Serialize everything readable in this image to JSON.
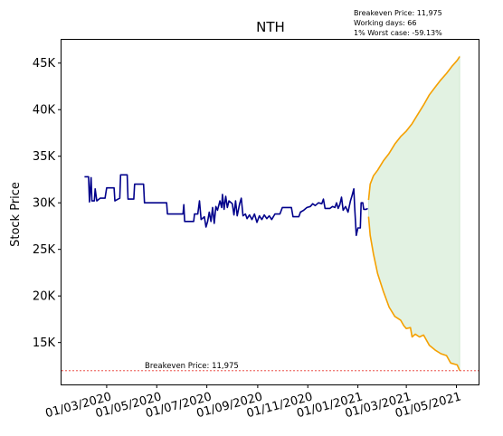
{
  "chart_data": {
    "type": "line",
    "title": "NTH",
    "xlabel": "",
    "ylabel": "Stock Price",
    "x_range": [
      "2020-01-06",
      "2021-05-28"
    ],
    "ylim": [
      10500,
      47500
    ],
    "x_ticks": [
      "01/03/2020",
      "01/05/2020",
      "01/07/2020",
      "01/09/2020",
      "01/11/2020",
      "01/01/2021",
      "01/03/2021",
      "01/05/2021"
    ],
    "x_tick_dates": [
      "2020-03-01",
      "2020-05-01",
      "2020-07-01",
      "2020-09-01",
      "2020-11-01",
      "2021-01-01",
      "2021-03-01",
      "2021-05-01"
    ],
    "y_ticks": [
      "15K",
      "20K",
      "25K",
      "30K",
      "35K",
      "40K",
      "45K"
    ],
    "y_tick_values": [
      15000,
      20000,
      25000,
      30000,
      35000,
      40000,
      45000
    ],
    "info_text": [
      "Breakeven Price: 11,975",
      "Working days: 66",
      "1% Worst case: -59.13%"
    ],
    "breakeven": {
      "value": 11975,
      "label": "Breakeven Price: 11,975",
      "color": "#e8352c"
    },
    "series": [
      {
        "color": "#00008b",
        "points": [
          [
            "2020-02-03",
            32800
          ],
          [
            "2020-02-08",
            32800
          ],
          [
            "2020-02-09",
            30100
          ],
          [
            "2020-02-11",
            32700
          ],
          [
            "2020-02-12",
            30200
          ],
          [
            "2020-02-15",
            30200
          ],
          [
            "2020-02-16",
            31500
          ],
          [
            "2020-02-18",
            30200
          ],
          [
            "2020-02-22",
            30500
          ],
          [
            "2020-02-28",
            30500
          ],
          [
            "2020-03-01",
            31600
          ],
          [
            "2020-03-10",
            31600
          ],
          [
            "2020-03-11",
            30200
          ],
          [
            "2020-03-17",
            30500
          ],
          [
            "2020-03-18",
            33000
          ],
          [
            "2020-03-26",
            33000
          ],
          [
            "2020-03-27",
            30400
          ],
          [
            "2020-04-03",
            30400
          ],
          [
            "2020-04-04",
            32000
          ],
          [
            "2020-04-15",
            32000
          ],
          [
            "2020-04-16",
            30000
          ],
          [
            "2020-05-13",
            30000
          ],
          [
            "2020-05-14",
            28800
          ],
          [
            "2020-06-02",
            28800
          ],
          [
            "2020-06-03",
            29800
          ],
          [
            "2020-06-04",
            28000
          ],
          [
            "2020-06-15",
            28000
          ],
          [
            "2020-06-16",
            28800
          ],
          [
            "2020-06-20",
            28800
          ],
          [
            "2020-06-22",
            30200
          ],
          [
            "2020-06-24",
            28200
          ],
          [
            "2020-06-28",
            28500
          ],
          [
            "2020-06-30",
            27400
          ],
          [
            "2020-07-02",
            28000
          ],
          [
            "2020-07-04",
            29000
          ],
          [
            "2020-07-06",
            28000
          ],
          [
            "2020-07-08",
            29500
          ],
          [
            "2020-07-10",
            27800
          ],
          [
            "2020-07-12",
            29600
          ],
          [
            "2020-07-14",
            29200
          ],
          [
            "2020-07-17",
            30200
          ],
          [
            "2020-07-19",
            29500
          ],
          [
            "2020-07-20",
            30900
          ],
          [
            "2020-07-22",
            29300
          ],
          [
            "2020-07-24",
            30700
          ],
          [
            "2020-07-26",
            29500
          ],
          [
            "2020-07-28",
            30200
          ],
          [
            "2020-08-01",
            29900
          ],
          [
            "2020-08-03",
            28700
          ],
          [
            "2020-08-05",
            30200
          ],
          [
            "2020-08-07",
            28600
          ],
          [
            "2020-08-10",
            29900
          ],
          [
            "2020-08-12",
            30500
          ],
          [
            "2020-08-14",
            28600
          ],
          [
            "2020-08-17",
            28800
          ],
          [
            "2020-08-19",
            28300
          ],
          [
            "2020-08-22",
            28700
          ],
          [
            "2020-08-25",
            28200
          ],
          [
            "2020-08-28",
            28800
          ],
          [
            "2020-08-31",
            27900
          ],
          [
            "2020-09-03",
            28600
          ],
          [
            "2020-09-06",
            28200
          ],
          [
            "2020-09-09",
            28700
          ],
          [
            "2020-09-12",
            28300
          ],
          [
            "2020-09-15",
            28600
          ],
          [
            "2020-09-18",
            28200
          ],
          [
            "2020-09-22",
            28800
          ],
          [
            "2020-09-28",
            28800
          ],
          [
            "2020-10-01",
            29500
          ],
          [
            "2020-10-12",
            29500
          ],
          [
            "2020-10-14",
            28500
          ],
          [
            "2020-10-21",
            28500
          ],
          [
            "2020-10-23",
            29000
          ],
          [
            "2020-10-27",
            29200
          ],
          [
            "2020-10-31",
            29500
          ],
          [
            "2020-11-04",
            29600
          ],
          [
            "2020-11-07",
            29900
          ],
          [
            "2020-11-10",
            29700
          ],
          [
            "2020-11-14",
            30000
          ],
          [
            "2020-11-18",
            29900
          ],
          [
            "2020-11-20",
            30400
          ],
          [
            "2020-11-22",
            29400
          ],
          [
            "2020-11-28",
            29400
          ],
          [
            "2020-12-01",
            29600
          ],
          [
            "2020-12-04",
            29500
          ],
          [
            "2020-12-06",
            30000
          ],
          [
            "2020-12-08",
            29400
          ],
          [
            "2020-12-10",
            29800
          ],
          [
            "2020-12-12",
            30600
          ],
          [
            "2020-12-14",
            29200
          ],
          [
            "2020-12-17",
            29600
          ],
          [
            "2020-12-20",
            29000
          ],
          [
            "2020-12-23",
            30200
          ],
          [
            "2020-12-25",
            30800
          ],
          [
            "2020-12-27",
            31500
          ],
          [
            "2020-12-28",
            29600
          ],
          [
            "2020-12-30",
            26500
          ],
          [
            "2021-01-01",
            27300
          ],
          [
            "2021-01-04",
            27300
          ],
          [
            "2021-01-05",
            30000
          ],
          [
            "2021-01-07",
            30000
          ],
          [
            "2021-01-08",
            29300
          ],
          [
            "2021-01-11",
            29300
          ],
          [
            "2021-01-13",
            29400
          ]
        ]
      },
      {
        "color": "#f5a000",
        "points": [
          [
            "2021-01-14",
            30300
          ],
          [
            "2021-01-16",
            32000
          ],
          [
            "2021-01-20",
            32900
          ],
          [
            "2021-01-25",
            33500
          ],
          [
            "2021-02-01",
            34500
          ],
          [
            "2021-02-08",
            35300
          ],
          [
            "2021-02-15",
            36300
          ],
          [
            "2021-02-22",
            37100
          ],
          [
            "2021-03-01",
            37700
          ],
          [
            "2021-03-08",
            38500
          ],
          [
            "2021-03-15",
            39500
          ],
          [
            "2021-03-22",
            40500
          ],
          [
            "2021-03-29",
            41600
          ],
          [
            "2021-04-05",
            42400
          ],
          [
            "2021-04-12",
            43200
          ],
          [
            "2021-04-19",
            43900
          ],
          [
            "2021-04-26",
            44700
          ],
          [
            "2021-05-02",
            45300
          ],
          [
            "2021-05-05",
            45700
          ]
        ]
      },
      {
        "color": "#f5a000",
        "points": [
          [
            "2021-01-14",
            28500
          ],
          [
            "2021-01-16",
            26500
          ],
          [
            "2021-01-20",
            24500
          ],
          [
            "2021-01-25",
            22400
          ],
          [
            "2021-02-01",
            20500
          ],
          [
            "2021-02-08",
            18800
          ],
          [
            "2021-02-15",
            17800
          ],
          [
            "2021-02-22",
            17400
          ],
          [
            "2021-02-26",
            16800
          ],
          [
            "2021-03-01",
            16500
          ],
          [
            "2021-03-06",
            16600
          ],
          [
            "2021-03-08",
            15600
          ],
          [
            "2021-03-12",
            15900
          ],
          [
            "2021-03-17",
            15600
          ],
          [
            "2021-03-22",
            15800
          ],
          [
            "2021-03-29",
            14700
          ],
          [
            "2021-04-05",
            14200
          ],
          [
            "2021-04-12",
            13800
          ],
          [
            "2021-04-19",
            13600
          ],
          [
            "2021-04-24",
            12800
          ],
          [
            "2021-05-02",
            12600
          ],
          [
            "2021-05-05",
            12000
          ]
        ]
      }
    ],
    "band_fill": "#e2f2e2",
    "grid": false
  }
}
